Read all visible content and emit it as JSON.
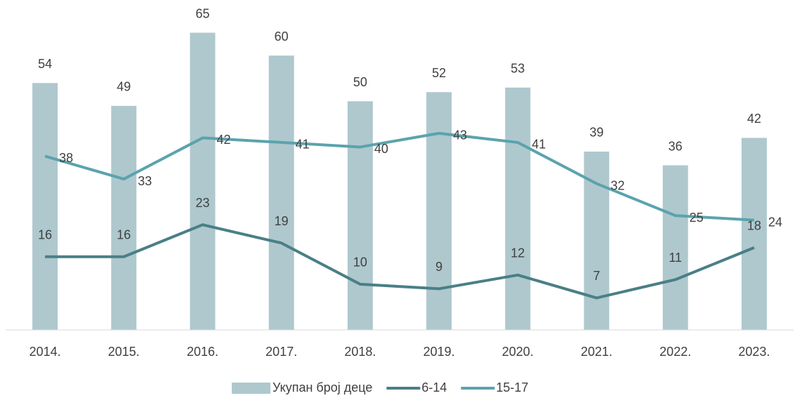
{
  "chart_data": {
    "type": "bar",
    "categories": [
      "2014.",
      "2015.",
      "2016.",
      "2017.",
      "2018.",
      "2019.",
      "2020.",
      "2021.",
      "2022.",
      "2023."
    ],
    "ylim": [
      0,
      72
    ],
    "series": [
      {
        "name": "Укупан број деце",
        "type": "bar",
        "color": "#aec8ce",
        "values": [
          54,
          49,
          65,
          60,
          50,
          52,
          53,
          39,
          36,
          42
        ]
      },
      {
        "name": "6-14",
        "type": "line",
        "color": "#4a7f86",
        "values": [
          16,
          16,
          23,
          19,
          10,
          9,
          12,
          7,
          11,
          18
        ]
      },
      {
        "name": "15-17",
        "type": "line",
        "color": "#5ba3ad",
        "values": [
          38,
          33,
          42,
          41,
          40,
          43,
          41,
          32,
          25,
          24
        ]
      }
    ]
  }
}
